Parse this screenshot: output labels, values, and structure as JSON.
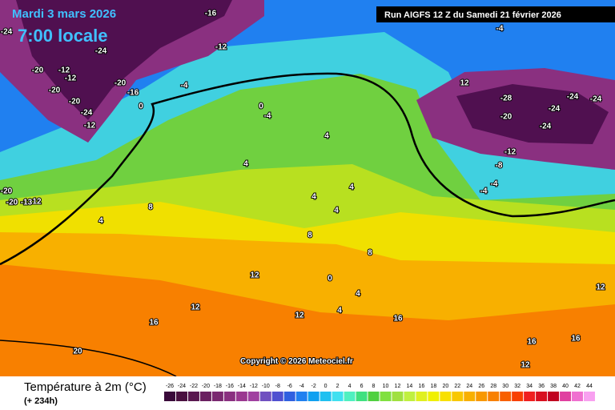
{
  "header": {
    "date": "Mardi 3 mars 2026",
    "time": "7:00 locale",
    "run": "Run AIGFS 12 Z du Samedi 21 février 2026"
  },
  "copyright": "Copyright © 2026 Meteociel.fr",
  "legend": {
    "title": "Température à 2m (°C)",
    "lead_time": "(+ 234h)",
    "ticks": [
      -26,
      -24,
      -22,
      -20,
      -18,
      -16,
      -14,
      -12,
      -10,
      -8,
      -6,
      -4,
      -2,
      0,
      2,
      4,
      6,
      8,
      10,
      12,
      14,
      16,
      18,
      20,
      22,
      24,
      26,
      28,
      30,
      32,
      34,
      36,
      38,
      40,
      42,
      44
    ],
    "colors": [
      "#3a0a3a",
      "#4a1040",
      "#5a1850",
      "#6a2060",
      "#7a2870",
      "#8a3080",
      "#9a3890",
      "#a040a0",
      "#7050c0",
      "#5050d0",
      "#3060e0",
      "#2080f0",
      "#10a0f0",
      "#20c0f0",
      "#40e0f0",
      "#50f0c0",
      "#40e080",
      "#50d040",
      "#80e040",
      "#a0e040",
      "#c0f040",
      "#e0f020",
      "#f0f000",
      "#f8e000",
      "#f8c800",
      "#f8b000",
      "#f89800",
      "#f88000",
      "#f86000",
      "#f84000",
      "#f02020",
      "#d81020",
      "#c00020",
      "#e040a0",
      "#f070d0",
      "#f8a0f0"
    ]
  },
  "contour_labels": [
    "-24",
    "-16",
    "-24",
    "-12",
    "-20",
    "-12",
    "-12",
    "-20",
    "-4",
    "-20",
    "-16",
    "-20",
    "-24",
    "-12",
    "0",
    "0",
    "-4",
    "4",
    "4",
    "8",
    "4",
    "-20",
    "-20",
    "-13",
    "12",
    "8",
    "12",
    "12",
    "16",
    "12",
    "20",
    "12",
    "-4",
    "-28",
    "-24",
    "-24",
    "-24",
    "-20",
    "-24",
    "-12",
    "-8",
    "-4",
    "-4",
    "16",
    "16",
    "12",
    "12",
    "4",
    "4",
    "8",
    "0",
    "16",
    "4",
    "4",
    "4"
  ]
}
